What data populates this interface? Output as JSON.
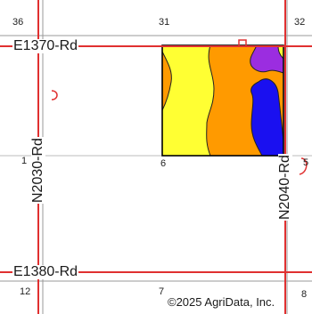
{
  "section_numbers": [
    "36",
    "31",
    "32",
    "1",
    "6",
    "5",
    "12",
    "7",
    "8"
  ],
  "roads": {
    "top_horizontal": "E1370-Rd",
    "bottom_horizontal": "E1380-Rd",
    "left_vertical": "N2030-Rd",
    "right_vertical": "N2040-Rd"
  },
  "copyright": "©2025 AgriData, Inc.",
  "colors": {
    "road": "#e03030",
    "section_line": "#4a4a4a",
    "soil_yellow": "#ffff33",
    "soil_orange": "#ff9a00",
    "soil_blue": "#1a10f0",
    "soil_purple": "#9b2de0",
    "field_boundary": "#000000"
  }
}
